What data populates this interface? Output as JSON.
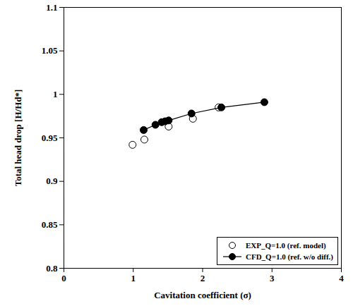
{
  "chart_data": {
    "type": "scatter",
    "xlabel": "Cavitation coefficient (σ)",
    "ylabel": "Total head drop [H/Hd*]",
    "xlim": [
      0,
      4
    ],
    "xticks": [
      0,
      1,
      2,
      3,
      4
    ],
    "ylim": [
      0.8,
      1.1
    ],
    "yticks": [
      0.8,
      0.85,
      0.9,
      0.95,
      1,
      1.05,
      1.1
    ],
    "grid": false,
    "legend": "lower right",
    "series": [
      {
        "name": "EXP_Q=1.0 (ref. model)",
        "type": "scatter",
        "marker": "open_circle",
        "color": "#000000",
        "x": [
          0.99,
          1.16,
          1.51,
          1.86,
          2.23
        ],
        "values": [
          0.942,
          0.948,
          0.963,
          0.972,
          0.985
        ]
      },
      {
        "name": "CFD_Q=1.0 (ref. w/o diff.)",
        "type": "line",
        "marker": "filled_circle",
        "color": "#000000",
        "x": [
          1.15,
          1.32,
          1.41,
          1.46,
          1.51,
          1.84,
          2.27,
          2.89
        ],
        "values": [
          0.959,
          0.965,
          0.968,
          0.969,
          0.97,
          0.978,
          0.985,
          0.991
        ]
      }
    ]
  }
}
